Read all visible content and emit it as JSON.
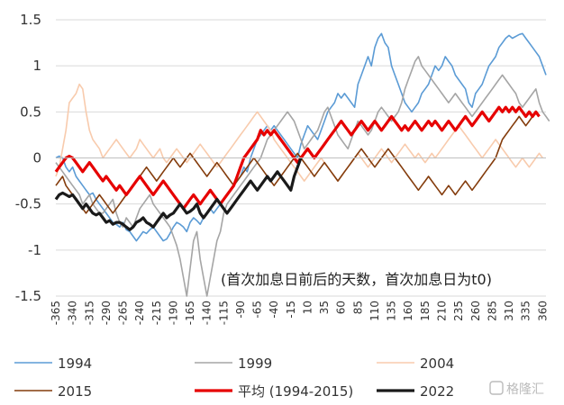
{
  "chart_data": {
    "type": "line",
    "annotation": "(首次加息日前后的天数，首次加息日为t0)",
    "yticks": [
      "1.5",
      "1",
      "0.5",
      "0",
      "-0.5",
      "-1",
      "-1.5"
    ],
    "ylim": [
      -1.5,
      1.5
    ],
    "xlim": [
      -365,
      365
    ],
    "xticks": [
      -365,
      -340,
      -315,
      -290,
      -265,
      -240,
      -215,
      -190,
      -165,
      -140,
      -115,
      -90,
      -65,
      -40,
      -15,
      10,
      35,
      60,
      85,
      110,
      135,
      160,
      185,
      210,
      235,
      260,
      285,
      310,
      335,
      360
    ],
    "x_step": 5,
    "x_start": -365,
    "grid": true,
    "legend_position": "bottom",
    "watermark": "格隆汇",
    "series": [
      {
        "name": "1994",
        "color": "#5B9BD5",
        "width": 1.6,
        "values": [
          0.0,
          0.02,
          0.0,
          -0.1,
          -0.15,
          -0.1,
          -0.2,
          -0.25,
          -0.3,
          -0.35,
          -0.4,
          -0.38,
          -0.45,
          -0.5,
          -0.55,
          -0.6,
          -0.65,
          -0.7,
          -0.72,
          -0.75,
          -0.7,
          -0.78,
          -0.8,
          -0.85,
          -0.9,
          -0.85,
          -0.8,
          -0.82,
          -0.78,
          -0.75,
          -0.8,
          -0.85,
          -0.9,
          -0.88,
          -0.82,
          -0.75,
          -0.7,
          -0.72,
          -0.75,
          -0.8,
          -0.7,
          -0.65,
          -0.68,
          -0.72,
          -0.65,
          -0.6,
          -0.55,
          -0.6,
          -0.55,
          -0.5,
          -0.45,
          -0.4,
          -0.35,
          -0.3,
          -0.25,
          -0.2,
          -0.1,
          -0.15,
          0.0,
          0.1,
          0.2,
          0.25,
          0.3,
          0.35,
          0.3,
          0.35,
          0.3,
          0.25,
          0.2,
          0.15,
          0.1,
          0.05,
          0.0,
          0.15,
          0.25,
          0.35,
          0.3,
          0.25,
          0.2,
          0.3,
          0.4,
          0.5,
          0.55,
          0.6,
          0.7,
          0.65,
          0.7,
          0.65,
          0.6,
          0.55,
          0.8,
          0.9,
          1.0,
          1.1,
          1.0,
          1.2,
          1.3,
          1.35,
          1.25,
          1.2,
          1.0,
          0.9,
          0.8,
          0.7,
          0.6,
          0.55,
          0.5,
          0.55,
          0.6,
          0.7,
          0.75,
          0.8,
          0.9,
          1.0,
          0.95,
          1.0,
          1.1,
          1.05,
          1.0,
          0.9,
          0.85,
          0.8,
          0.75,
          0.6,
          0.55,
          0.7,
          0.75,
          0.8,
          0.9,
          1.0,
          1.05,
          1.1,
          1.2,
          1.25,
          1.3,
          1.33,
          1.3,
          1.32,
          1.34,
          1.35,
          1.3,
          1.25,
          1.2,
          1.15,
          1.1,
          1.0,
          0.9
        ]
      },
      {
        "name": "1999",
        "color": "#A5A5A5",
        "width": 1.6,
        "values": [
          -0.05,
          -0.1,
          -0.15,
          -0.2,
          -0.25,
          -0.3,
          -0.35,
          -0.4,
          -0.5,
          -0.45,
          -0.4,
          -0.5,
          -0.55,
          -0.6,
          -0.6,
          -0.55,
          -0.5,
          -0.45,
          -0.6,
          -0.7,
          -0.75,
          -0.65,
          -0.7,
          -0.75,
          -0.65,
          -0.55,
          -0.5,
          -0.45,
          -0.4,
          -0.5,
          -0.55,
          -0.6,
          -0.65,
          -0.7,
          -0.75,
          -0.85,
          -0.95,
          -1.1,
          -1.3,
          -1.5,
          -1.2,
          -0.9,
          -0.8,
          -1.1,
          -1.3,
          -1.5,
          -1.3,
          -1.1,
          -0.9,
          -0.8,
          -0.6,
          -0.5,
          -0.45,
          -0.4,
          -0.35,
          -0.3,
          -0.25,
          -0.2,
          -0.15,
          -0.1,
          -0.05,
          0.0,
          0.1,
          0.2,
          0.25,
          0.3,
          0.35,
          0.4,
          0.45,
          0.5,
          0.45,
          0.4,
          0.3,
          0.2,
          0.1,
          0.15,
          0.2,
          0.25,
          0.3,
          0.4,
          0.5,
          0.55,
          0.45,
          0.35,
          0.25,
          0.2,
          0.15,
          0.1,
          0.2,
          0.3,
          0.4,
          0.35,
          0.3,
          0.25,
          0.3,
          0.4,
          0.5,
          0.55,
          0.5,
          0.45,
          0.4,
          0.45,
          0.5,
          0.6,
          0.75,
          0.85,
          0.95,
          1.05,
          1.1,
          1.0,
          0.95,
          0.9,
          0.85,
          0.8,
          0.75,
          0.7,
          0.65,
          0.6,
          0.65,
          0.7,
          0.65,
          0.6,
          0.55,
          0.5,
          0.45,
          0.5,
          0.55,
          0.6,
          0.65,
          0.7,
          0.75,
          0.8,
          0.85,
          0.9,
          0.85,
          0.8,
          0.75,
          0.7,
          0.6,
          0.55,
          0.6,
          0.65,
          0.7,
          0.75,
          0.6,
          0.5,
          0.45,
          0.4
        ]
      },
      {
        "name": "2004",
        "color": "#F8CBAD",
        "width": 1.6,
        "values": [
          -0.2,
          -0.1,
          0.1,
          0.3,
          0.6,
          0.65,
          0.7,
          0.8,
          0.75,
          0.5,
          0.3,
          0.2,
          0.15,
          0.1,
          0.0,
          0.05,
          0.1,
          0.15,
          0.2,
          0.15,
          0.1,
          0.05,
          0.0,
          0.05,
          0.1,
          0.2,
          0.15,
          0.1,
          0.05,
          0.0,
          0.05,
          0.1,
          0.0,
          -0.05,
          0.0,
          0.05,
          0.1,
          0.05,
          0.0,
          -0.05,
          0.0,
          0.05,
          0.1,
          0.15,
          0.1,
          0.05,
          0.0,
          -0.05,
          -0.1,
          -0.05,
          0.0,
          0.05,
          0.1,
          0.15,
          0.2,
          0.25,
          0.3,
          0.35,
          0.4,
          0.45,
          0.5,
          0.45,
          0.4,
          0.35,
          0.3,
          0.2,
          0.15,
          0.1,
          0.05,
          0.0,
          -0.05,
          -0.1,
          -0.15,
          -0.2,
          -0.25,
          -0.2,
          -0.15,
          -0.1,
          -0.05,
          0.0,
          -0.05,
          -0.1,
          -0.15,
          -0.2,
          -0.25,
          -0.2,
          -0.15,
          -0.1,
          -0.05,
          0.0,
          0.05,
          0.0,
          -0.05,
          -0.1,
          -0.05,
          0.0,
          0.05,
          0.1,
          0.05,
          0.0,
          -0.05,
          0.0,
          0.05,
          0.1,
          0.15,
          0.1,
          0.05,
          0.0,
          0.05,
          0.0,
          -0.05,
          0.0,
          0.05,
          0.0,
          0.05,
          0.1,
          0.15,
          0.2,
          0.25,
          0.3,
          0.35,
          0.3,
          0.25,
          0.2,
          0.15,
          0.1,
          0.05,
          0.0,
          0.05,
          0.1,
          0.15,
          0.2,
          0.15,
          0.1,
          0.05,
          0.0,
          -0.05,
          -0.1,
          -0.05,
          0.0,
          -0.05,
          -0.1,
          -0.05,
          0.0,
          0.05,
          0.0
        ]
      },
      {
        "name": "2015",
        "color": "#843C0C",
        "width": 1.6,
        "values": [
          -0.3,
          -0.25,
          -0.2,
          -0.3,
          -0.35,
          -0.4,
          -0.45,
          -0.5,
          -0.55,
          -0.6,
          -0.55,
          -0.5,
          -0.45,
          -0.4,
          -0.45,
          -0.5,
          -0.55,
          -0.6,
          -0.55,
          -0.5,
          -0.45,
          -0.4,
          -0.35,
          -0.3,
          -0.25,
          -0.2,
          -0.15,
          -0.1,
          -0.15,
          -0.2,
          -0.25,
          -0.2,
          -0.15,
          -0.1,
          -0.05,
          0.0,
          -0.05,
          -0.1,
          -0.05,
          0.0,
          0.05,
          0.0,
          -0.05,
          -0.1,
          -0.15,
          -0.2,
          -0.15,
          -0.1,
          -0.05,
          -0.1,
          -0.15,
          -0.2,
          -0.25,
          -0.3,
          -0.25,
          -0.2,
          -0.15,
          -0.1,
          -0.05,
          0.0,
          -0.05,
          -0.1,
          -0.15,
          -0.2,
          -0.25,
          -0.3,
          -0.25,
          -0.2,
          -0.15,
          -0.1,
          -0.05,
          0.0,
          0.05,
          0.0,
          -0.05,
          -0.1,
          -0.15,
          -0.2,
          -0.15,
          -0.1,
          -0.05,
          -0.1,
          -0.15,
          -0.2,
          -0.25,
          -0.2,
          -0.15,
          -0.1,
          -0.05,
          0.0,
          0.05,
          0.1,
          0.05,
          0.0,
          -0.05,
          -0.1,
          -0.05,
          0.0,
          0.05,
          0.1,
          0.05,
          0.0,
          -0.05,
          -0.1,
          -0.15,
          -0.2,
          -0.25,
          -0.3,
          -0.35,
          -0.3,
          -0.25,
          -0.2,
          -0.25,
          -0.3,
          -0.35,
          -0.4,
          -0.35,
          -0.3,
          -0.35,
          -0.4,
          -0.35,
          -0.3,
          -0.25,
          -0.3,
          -0.35,
          -0.3,
          -0.25,
          -0.2,
          -0.15,
          -0.1,
          -0.05,
          0.0,
          0.1,
          0.2,
          0.25,
          0.3,
          0.35,
          0.4,
          0.45,
          0.4,
          0.35,
          0.4,
          0.45,
          0.5
        ]
      },
      {
        "name": "平均 (1994-2015)",
        "color": "#E60000",
        "width": 3.2,
        "values": [
          -0.15,
          -0.1,
          -0.05,
          0.0,
          0.02,
          0.0,
          -0.05,
          -0.1,
          -0.15,
          -0.1,
          -0.05,
          -0.1,
          -0.15,
          -0.2,
          -0.25,
          -0.2,
          -0.25,
          -0.3,
          -0.35,
          -0.3,
          -0.35,
          -0.4,
          -0.35,
          -0.3,
          -0.25,
          -0.2,
          -0.25,
          -0.3,
          -0.35,
          -0.4,
          -0.35,
          -0.3,
          -0.25,
          -0.3,
          -0.35,
          -0.4,
          -0.45,
          -0.5,
          -0.55,
          -0.5,
          -0.45,
          -0.4,
          -0.45,
          -0.5,
          -0.45,
          -0.4,
          -0.35,
          -0.4,
          -0.45,
          -0.5,
          -0.45,
          -0.4,
          -0.35,
          -0.3,
          -0.2,
          -0.1,
          0.0,
          0.05,
          0.1,
          0.15,
          0.2,
          0.3,
          0.25,
          0.3,
          0.25,
          0.3,
          0.25,
          0.2,
          0.15,
          0.1,
          0.05,
          0.0,
          -0.05,
          0.0,
          0.05,
          0.1,
          0.05,
          0.0,
          0.05,
          0.1,
          0.15,
          0.2,
          0.25,
          0.3,
          0.35,
          0.4,
          0.35,
          0.3,
          0.25,
          0.3,
          0.35,
          0.4,
          0.35,
          0.3,
          0.35,
          0.4,
          0.35,
          0.3,
          0.35,
          0.4,
          0.45,
          0.4,
          0.35,
          0.3,
          0.35,
          0.3,
          0.35,
          0.4,
          0.35,
          0.3,
          0.35,
          0.4,
          0.35,
          0.4,
          0.35,
          0.3,
          0.35,
          0.4,
          0.35,
          0.3,
          0.35,
          0.4,
          0.45,
          0.4,
          0.35,
          0.4,
          0.45,
          0.5,
          0.45,
          0.4,
          0.45,
          0.5,
          0.55,
          0.5,
          0.55,
          0.5,
          0.55,
          0.5,
          0.55,
          0.5,
          0.45,
          0.5,
          0.45,
          0.5,
          0.45
        ]
      },
      {
        "name": "2022",
        "color": "#1A1A1A",
        "width": 3.2,
        "values": [
          -0.45,
          -0.4,
          -0.38,
          -0.4,
          -0.42,
          -0.4,
          -0.45,
          -0.5,
          -0.55,
          -0.5,
          -0.55,
          -0.6,
          -0.62,
          -0.6,
          -0.65,
          -0.7,
          -0.68,
          -0.72,
          -0.7,
          -0.7,
          -0.72,
          -0.75,
          -0.78,
          -0.75,
          -0.7,
          -0.68,
          -0.65,
          -0.7,
          -0.72,
          -0.75,
          -0.7,
          -0.65,
          -0.6,
          -0.65,
          -0.62,
          -0.6,
          -0.55,
          -0.5,
          -0.55,
          -0.6,
          -0.58,
          -0.55,
          -0.5,
          -0.6,
          -0.65,
          -0.6,
          -0.55,
          -0.5,
          -0.45,
          -0.5,
          -0.55,
          -0.6,
          -0.55,
          -0.5,
          -0.45,
          -0.4,
          -0.35,
          -0.3,
          -0.25,
          -0.3,
          -0.35,
          -0.3,
          -0.25,
          -0.2,
          -0.25,
          -0.2,
          -0.15,
          -0.2,
          -0.25,
          -0.3,
          -0.35,
          -0.2,
          -0.1,
          0.0
        ]
      }
    ]
  }
}
